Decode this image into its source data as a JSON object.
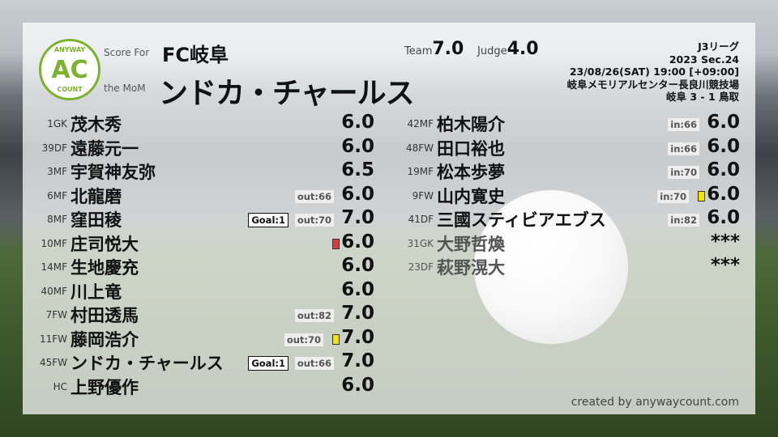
{
  "header": {
    "logo_top": "ANYWAY",
    "logo_mid": "AC",
    "logo_bottom": "COUNT",
    "score_for_label": "Score For",
    "team": "FC岐阜",
    "mom_label": "the MoM",
    "mom_name": "ンドカ・チャールス",
    "team_label": "Team",
    "team_score": "7.0",
    "judge_label": "Judge",
    "judge_score": "4.0"
  },
  "match": {
    "league": "J3リーグ",
    "season": "2023 Sec.24",
    "datetime": "23/08/26(SAT) 19:00 [+09:00]",
    "venue": "岐阜メモリアルセンター長良川競技場",
    "result": "岐阜 3 - 1 鳥取"
  },
  "colors": {
    "logo": "#7ab32e",
    "yellow_card": "#f2e600",
    "red_card": "#e23a3a"
  },
  "starters": [
    {
      "pos": "1GK",
      "name": "茂木秀",
      "score": "6.0"
    },
    {
      "pos": "39DF",
      "name": "遠藤元一",
      "score": "6.0"
    },
    {
      "pos": "3MF",
      "name": "宇賀神友弥",
      "score": "6.5"
    },
    {
      "pos": "6MF",
      "name": "北龍磨",
      "score": "6.0",
      "sub": "out:66"
    },
    {
      "pos": "8MF",
      "name": "窪田稜",
      "score": "7.0",
      "sub": "out:70",
      "goal": "Goal:1"
    },
    {
      "pos": "10MF",
      "name": "庄司悦大",
      "score": "6.0",
      "card": "red"
    },
    {
      "pos": "14MF",
      "name": "生地慶充",
      "score": "6.0"
    },
    {
      "pos": "40MF",
      "name": "川上竜",
      "score": "6.0"
    },
    {
      "pos": "7FW",
      "name": "村田透馬",
      "score": "7.0",
      "sub": "out:82"
    },
    {
      "pos": "11FW",
      "name": "藤岡浩介",
      "score": "7.0",
      "sub": "out:70",
      "card": "yellow"
    },
    {
      "pos": "45FW",
      "name": "ンドカ・チャールス",
      "score": "7.0",
      "sub": "out:66",
      "goal": "Goal:1"
    },
    {
      "pos": "HC",
      "name": "上野優作",
      "score": "6.0"
    }
  ],
  "subs": [
    {
      "pos": "42MF",
      "name": "柏木陽介",
      "score": "6.0",
      "sub": "in:66"
    },
    {
      "pos": "48FW",
      "name": "田口裕也",
      "score": "6.0",
      "sub": "in:66"
    },
    {
      "pos": "19MF",
      "name": "松本歩夢",
      "score": "6.0",
      "sub": "in:70"
    },
    {
      "pos": "9FW",
      "name": "山内寛史",
      "score": "6.0",
      "sub": "in:70",
      "card": "yellow"
    },
    {
      "pos": "41DF",
      "name": "三國スティビアエブス",
      "score": "6.0",
      "sub": "in:82"
    },
    {
      "pos": "31GK",
      "name": "大野哲煥",
      "score": "***",
      "bench": true
    },
    {
      "pos": "23DF",
      "name": "萩野滉大",
      "score": "***",
      "bench": true
    }
  ],
  "footer": {
    "credit": "created by anywaycount.com"
  }
}
